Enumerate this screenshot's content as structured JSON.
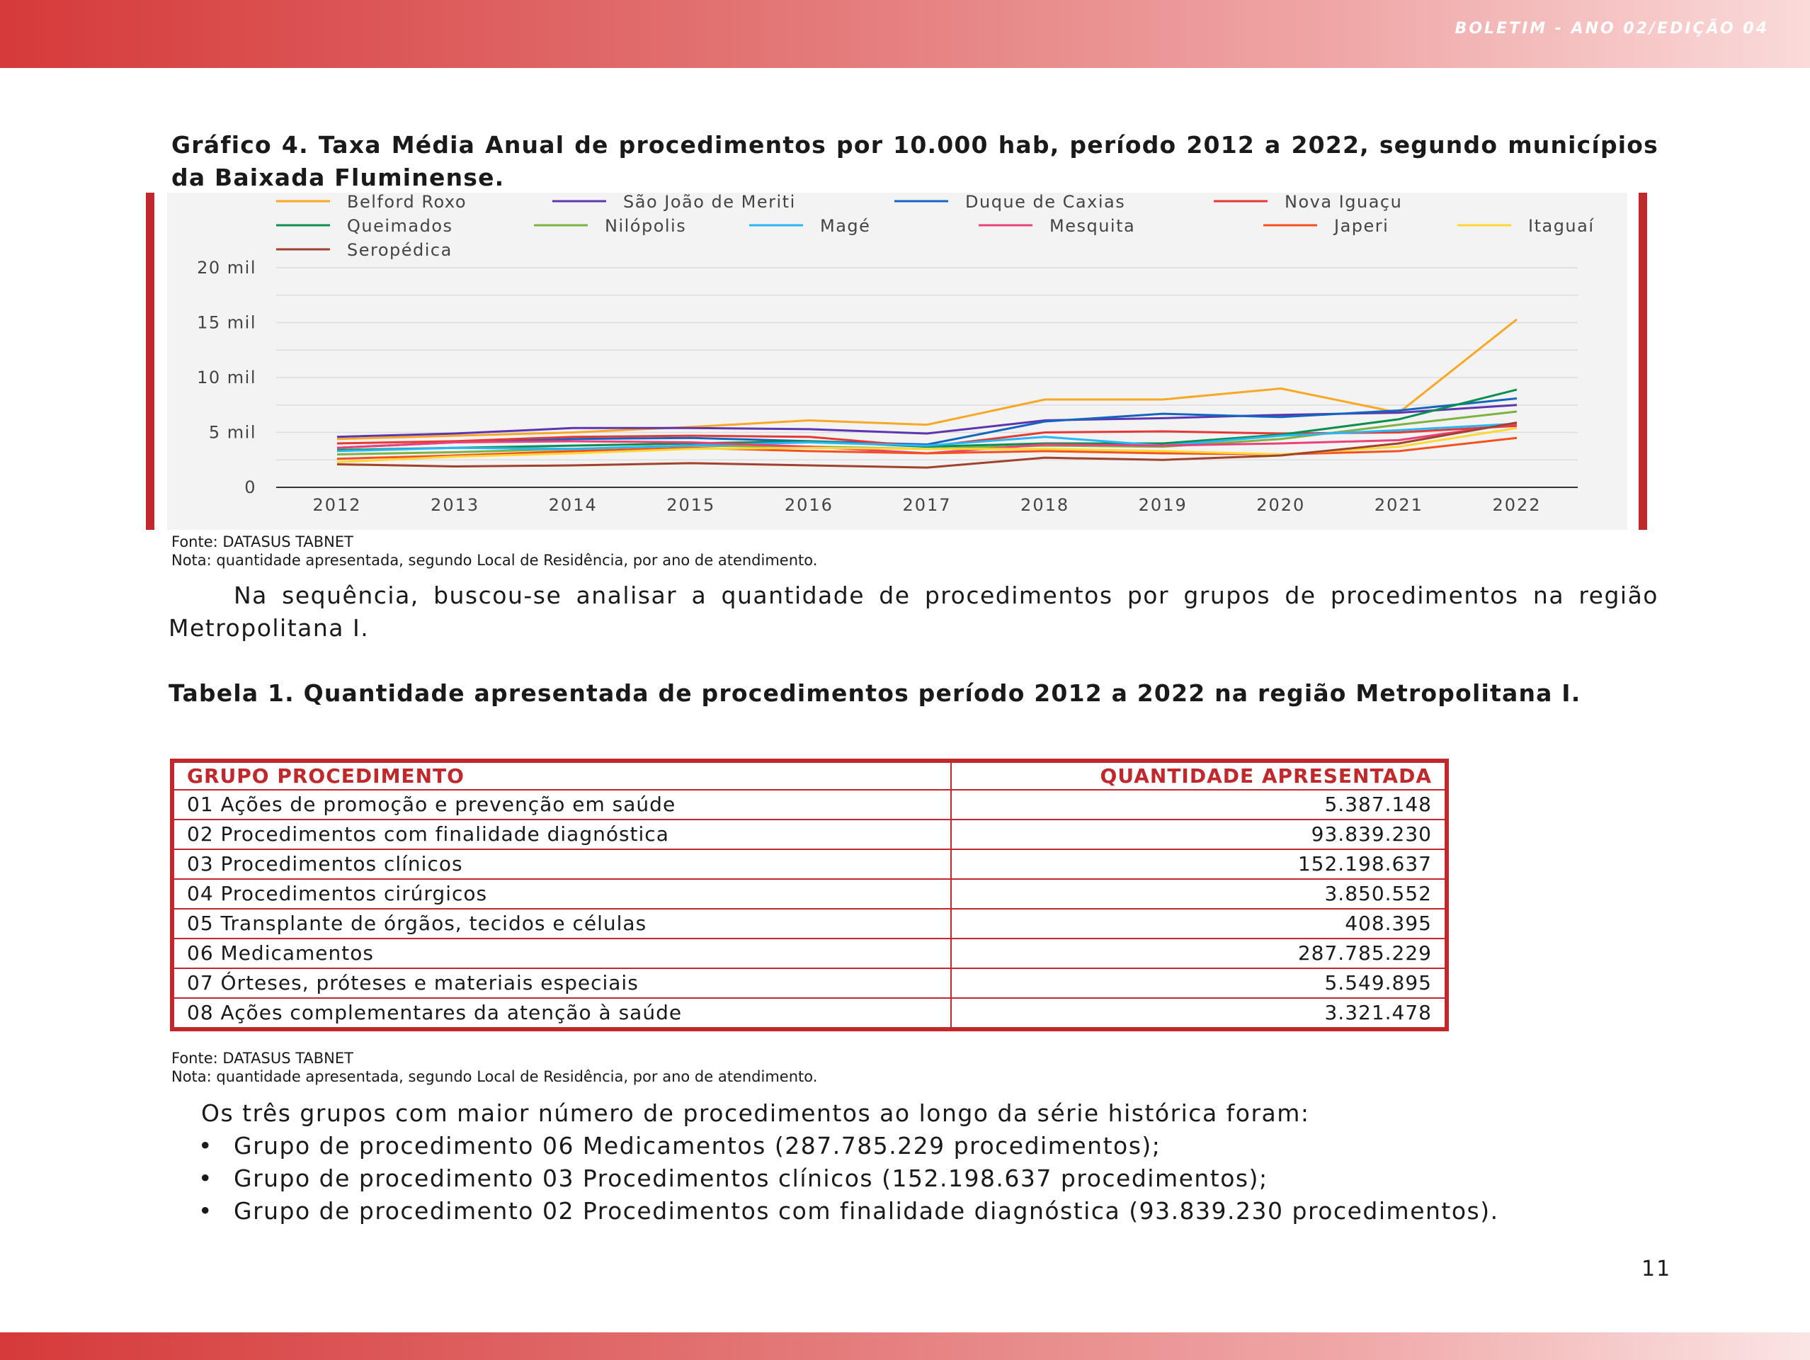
{
  "header": {
    "issue": "BOLETIM - ANO 02/EDIÇÃO 04"
  },
  "figure": {
    "caption": "Gráfico 4. Taxa Média Anual de procedimentos por 10.000 hab, período 2012 a 2022, segundo municípios da Baixada Fluminense.",
    "source": "Fonte: DATASUS TABNET",
    "note": "Nota: quantidade apresentada, segundo Local de Residência, por ano de atendimento."
  },
  "chart_data": {
    "type": "line",
    "title": "",
    "xlabel": "",
    "ylabel": "",
    "x": [
      "2012",
      "2013",
      "2014",
      "2015",
      "2016",
      "2017",
      "2018",
      "2019",
      "2020",
      "2021",
      "2022"
    ],
    "ylim": [
      0,
      20000
    ],
    "y_ticks": [
      0,
      5000,
      10000,
      15000,
      20000
    ],
    "y_tick_labels": [
      "0",
      "5 mil",
      "10 mil",
      "15 mil",
      "20 mil"
    ],
    "grid": true,
    "legend_position": "top",
    "series": [
      {
        "name": "Belford Roxo",
        "color": "#f9a825",
        "values": [
          4400,
          4700,
          5000,
          5500,
          6100,
          5700,
          8000,
          8000,
          9000,
          6800,
          15300
        ]
      },
      {
        "name": "São João de Meriti",
        "color": "#5e35b1",
        "values": [
          4600,
          4900,
          5400,
          5400,
          5300,
          4900,
          6100,
          6300,
          6600,
          6800,
          7500
        ]
      },
      {
        "name": "Duque de Caxias",
        "color": "#1565c0",
        "values": [
          3600,
          4100,
          4400,
          4500,
          4200,
          3900,
          6000,
          6700,
          6400,
          7000,
          8100
        ]
      },
      {
        "name": "Nova Iguaçu",
        "color": "#e53935",
        "values": [
          4000,
          4200,
          4600,
          4700,
          4600,
          3700,
          5000,
          5100,
          4900,
          5000,
          5600
        ]
      },
      {
        "name": "Queimados",
        "color": "#0b8f4f",
        "values": [
          3400,
          3600,
          3800,
          4000,
          4200,
          3700,
          4000,
          4000,
          4800,
          6200,
          8900
        ]
      },
      {
        "name": "Nilópolis",
        "color": "#7cb342",
        "values": [
          3000,
          3200,
          3500,
          3800,
          3700,
          3500,
          3800,
          3700,
          4400,
          5700,
          6900
        ]
      },
      {
        "name": "Magé",
        "color": "#29b6f6",
        "values": [
          3300,
          3600,
          3500,
          3800,
          4100,
          3800,
          4600,
          3800,
          4700,
          5200,
          5800
        ]
      },
      {
        "name": "Mesquita",
        "color": "#ec407a",
        "values": [
          3600,
          4100,
          4200,
          4100,
          3700,
          3100,
          3900,
          3800,
          4000,
          4300,
          5800
        ]
      },
      {
        "name": "Japeri",
        "color": "#f4511e",
        "values": [
          2600,
          2900,
          3300,
          3600,
          3300,
          3100,
          3300,
          3100,
          3000,
          3300,
          4500
        ]
      },
      {
        "name": "Itaguaí",
        "color": "#fdd835",
        "values": [
          2300,
          2800,
          3100,
          3500,
          3600,
          3500,
          3500,
          3300,
          3000,
          3700,
          5400
        ]
      },
      {
        "name": "Seropédica",
        "color": "#a0422c",
        "values": [
          2100,
          1900,
          2000,
          2200,
          2000,
          1800,
          2700,
          2500,
          2900,
          4000,
          5900
        ]
      }
    ]
  },
  "intro": "Na sequência, buscou-se analisar a quantidade de procedimentos por grupos de procedimentos na região Metropolitana I.",
  "table": {
    "caption": "Tabela 1. Quantidade apresentada de procedimentos período 2012 a 2022 na região Metropolitana I.",
    "headers": [
      "GRUPO PROCEDIMENTO",
      "QUANTIDADE APRESENTADA"
    ],
    "rows": [
      [
        "01 Ações de promoção e prevenção em saúde",
        "5.387.148"
      ],
      [
        "02 Procedimentos com finalidade diagnóstica",
        "93.839.230"
      ],
      [
        "03 Procedimentos clínicos",
        "152.198.637"
      ],
      [
        "04 Procedimentos cirúrgicos",
        "3.850.552"
      ],
      [
        "05 Transplante de órgãos, tecidos e células",
        "408.395"
      ],
      [
        "06 Medicamentos",
        "287.785.229"
      ],
      [
        "07 Órteses, próteses e materiais especiais",
        "5.549.895"
      ],
      [
        "08 Ações complementares da atenção à saúde",
        "3.321.478"
      ]
    ],
    "source": "Fonte: DATASUS TABNET",
    "note": "Nota: quantidade apresentada, segundo Local de Residência, por ano de atendimento."
  },
  "summary": {
    "intro": "Os três grupos com maior número de procedimentos ao longo da série histórica foram:",
    "bullet_symbol": "•",
    "items": [
      "Grupo de procedimento 06 Medicamentos (287.785.229 procedimentos);",
      "Grupo de procedimento 03 Procedimentos clínicos (152.198.637 procedimentos);",
      "Grupo de procedimento 02 Procedimentos com finalidade diagnóstica (93.839.230 procedimentos)."
    ]
  },
  "page_number": "11"
}
